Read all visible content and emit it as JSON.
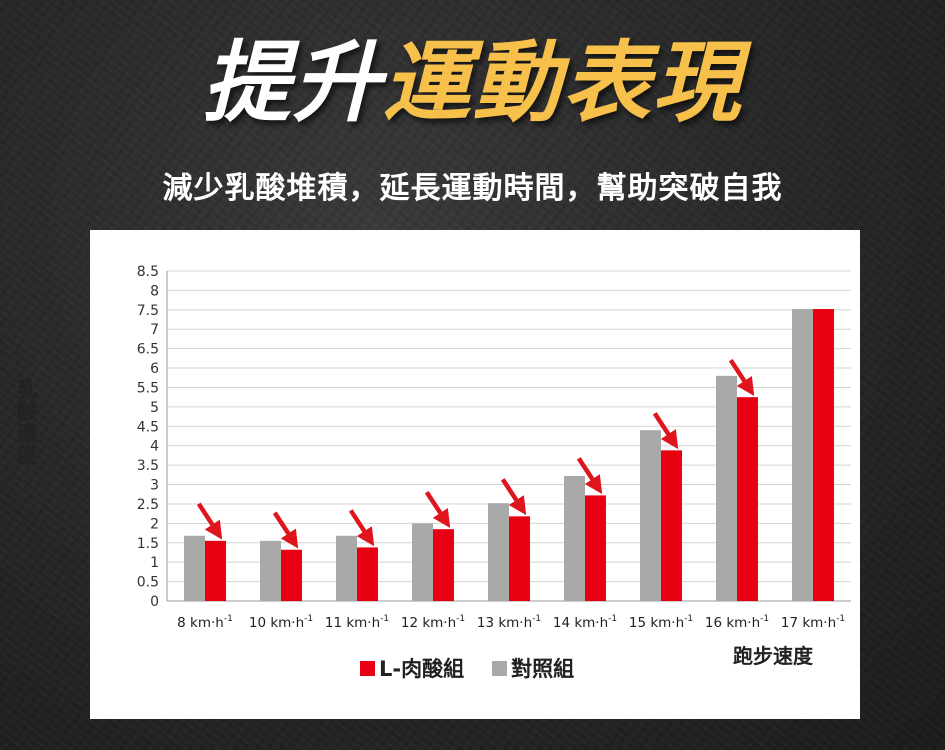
{
  "header": {
    "title_part1": "提升",
    "title_part2": "運動表現",
    "subtitle": "減少乳酸堆積，延長運動時間，幫助突破自我"
  },
  "colors": {
    "accent": "#f7c04a",
    "l_carnitine": "#e60012",
    "control": "#a9a9a9",
    "arrow": "#e0141c"
  },
  "chart_data": {
    "type": "bar",
    "ylabel": "乳酸濃度",
    "xlabel": "跑步速度",
    "ylim": [
      0,
      8.5
    ],
    "yticks": [
      "0",
      "0.5",
      "1",
      "1.5",
      "2",
      "2.5",
      "3",
      "3.5",
      "4",
      "4.5",
      "5",
      "5.5",
      "6",
      "6.5",
      "7",
      "7.5",
      "8",
      "8.5"
    ],
    "categories": [
      "8 km·h",
      "10 km·h",
      "11 km·h",
      "12 km·h",
      "13 km·h",
      "14 km·h",
      "15 km·h",
      "16 km·h",
      "17 km·h"
    ],
    "category_superscript": "-1",
    "series": [
      {
        "name": "對照組",
        "values": [
          1.68,
          1.55,
          1.68,
          2.0,
          2.52,
          3.22,
          4.4,
          5.8,
          7.52
        ]
      },
      {
        "name": "L-肉酸組",
        "values": [
          1.55,
          1.32,
          1.38,
          1.85,
          2.18,
          2.72,
          3.88,
          5.25,
          7.52
        ]
      }
    ],
    "arrows_on_categories": [
      0,
      1,
      2,
      3,
      4,
      5,
      6,
      7
    ],
    "grid": true,
    "legend_position": "bottom"
  }
}
